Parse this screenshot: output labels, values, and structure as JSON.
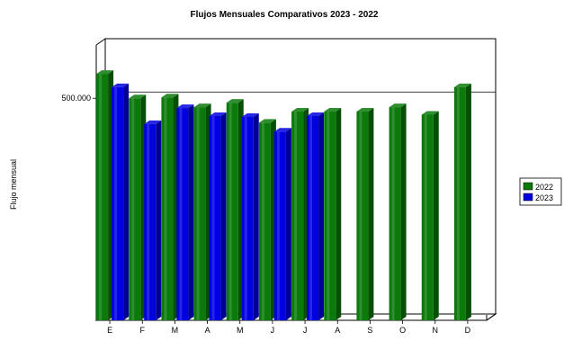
{
  "chart_data": {
    "type": "bar",
    "title": "Flujos Mensuales Comparativos 2023 - 2022",
    "xlabel": "",
    "ylabel": "Flujo mensual",
    "categories": [
      "E",
      "F",
      "M",
      "A",
      "M",
      "J",
      "J",
      "A",
      "S",
      "O",
      "N",
      "D"
    ],
    "series": [
      {
        "name": "2022",
        "color": "#0b7a0b",
        "values": [
          555000,
          500000,
          502000,
          480000,
          490000,
          445000,
          470000,
          470000,
          470000,
          480000,
          463000,
          525000
        ]
      },
      {
        "name": "2023",
        "color": "#0000e0",
        "values": [
          525000,
          442000,
          478000,
          460000,
          458000,
          425000,
          460000,
          null,
          null,
          null,
          null,
          null
        ]
      }
    ],
    "y_ticks": [
      {
        "value": 500000,
        "label": "500.000"
      }
    ],
    "ylim": [
      0,
      620000
    ],
    "grid": "horizontal",
    "legend_position": "right"
  }
}
